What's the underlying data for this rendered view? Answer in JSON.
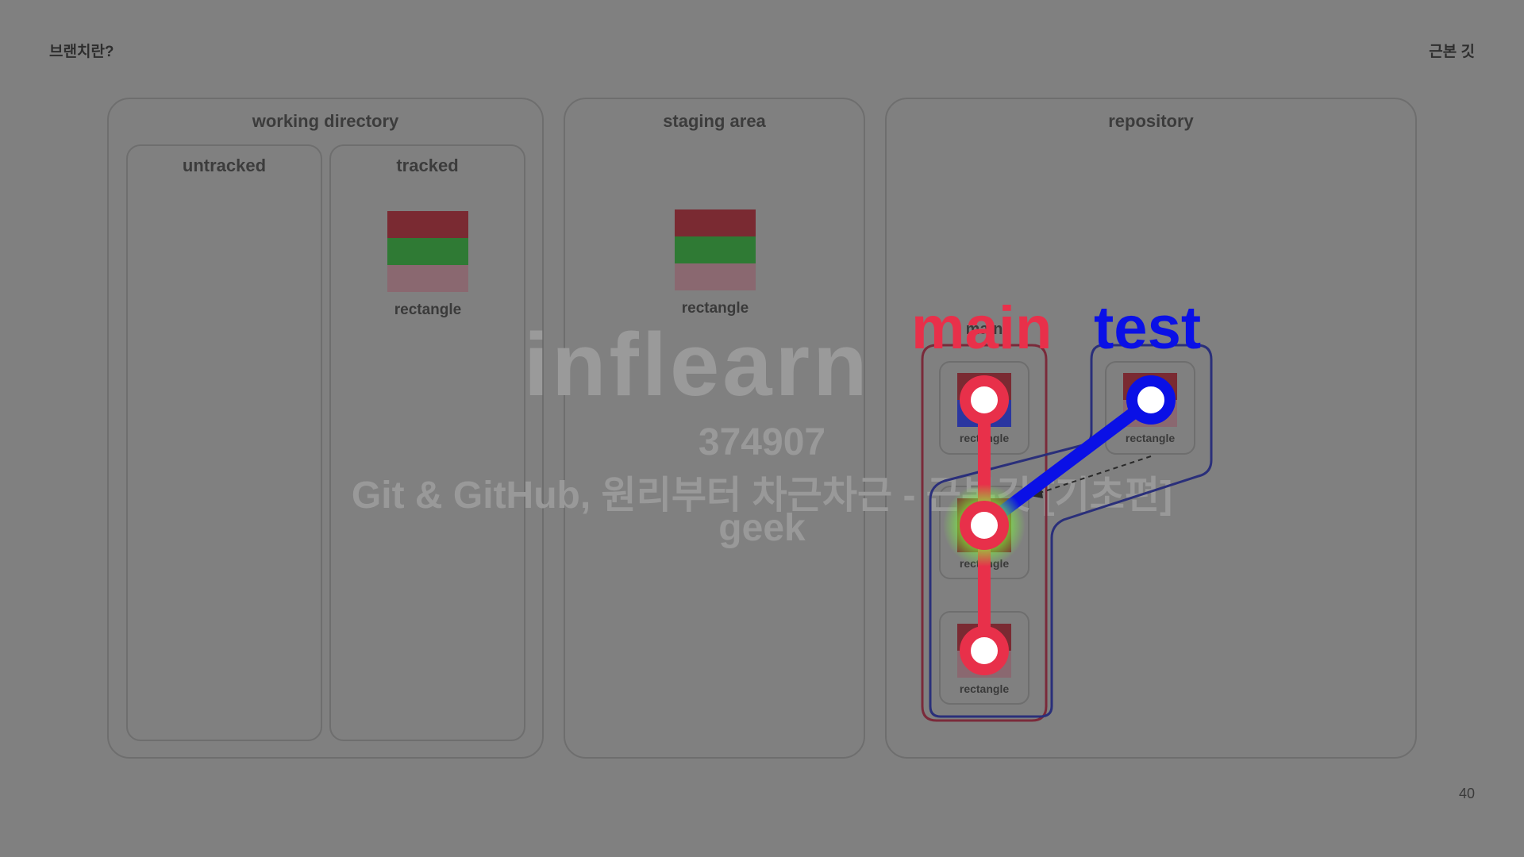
{
  "header": {
    "title": "브랜치란?",
    "right_label": "근본 깃"
  },
  "page_number": "40",
  "panels": {
    "working_directory": "working directory",
    "untracked": "untracked",
    "tracked": "tracked",
    "staging_area": "staging area",
    "repository": "repository"
  },
  "files": {
    "tracked_label": "rectangle",
    "staged_label": "rectangle"
  },
  "commits": [
    {
      "label": "rectangle"
    },
    {
      "label": "rectangle"
    },
    {
      "label": "rectangle"
    },
    {
      "label": "rectangle"
    }
  ],
  "branches": {
    "main": {
      "name": "main",
      "color": "#e8304a"
    },
    "test": {
      "name": "test",
      "color": "#0a10e6"
    },
    "main_small": "main"
  },
  "watermark": {
    "logo": "inflearn",
    "id": "374907",
    "course": "Git & GitHub, 원리부터 차근차근 - 근본깃 [기초편]",
    "user": "geek"
  },
  "colors": {
    "background": "#808080",
    "head_glow": "#7cff3a"
  }
}
